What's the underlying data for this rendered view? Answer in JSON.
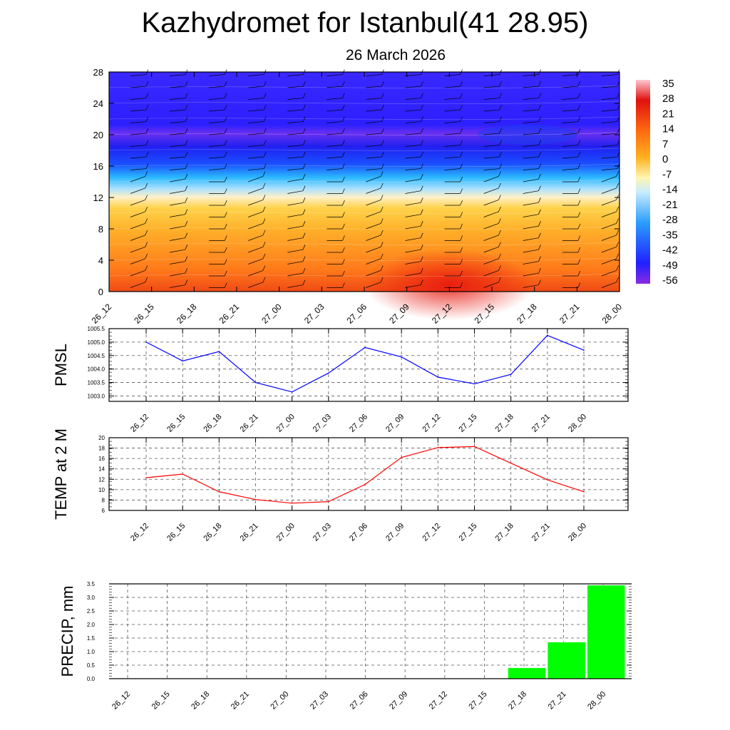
{
  "title": "Kazhydromet for Istanbul(41 28.95)",
  "subtitle": "26 March 2026",
  "time_labels": [
    "26_12",
    "26_15",
    "26_18",
    "26_21",
    "27_00",
    "27_03",
    "27_06",
    "27_09",
    "27_12",
    "27_15",
    "27_18",
    "27_21",
    "28_00"
  ],
  "chart_data": [
    {
      "type": "heatmap",
      "title": "",
      "xlabel": "",
      "ylabel": "",
      "x": [
        "26_12",
        "26_15",
        "26_18",
        "26_21",
        "27_00",
        "27_03",
        "27_06",
        "27_09",
        "27_12",
        "27_15",
        "27_18",
        "27_21",
        "28_00"
      ],
      "y_ticks": [
        0,
        4,
        8,
        12,
        16,
        20,
        24,
        28
      ],
      "ylim": [
        0,
        28
      ],
      "colorbar_labels": [
        "35",
        "28",
        "21",
        "14",
        "7",
        "0",
        "-7",
        "-14",
        "-21",
        "-28",
        "-35",
        "-42",
        "-49",
        "-56"
      ],
      "overlay": "wind barbs",
      "colors": {
        "hot": "#e8301a",
        "warm": "#ff9a1e",
        "cold": "#1e28ff",
        "deep_cold": "#7a2ef0"
      }
    },
    {
      "type": "line",
      "ylabel": "PMSL",
      "x": [
        "26_12",
        "26_15",
        "26_18",
        "26_21",
        "27_00",
        "27_03",
        "27_06",
        "27_09",
        "27_12",
        "27_15",
        "27_18",
        "27_21",
        "28_00"
      ],
      "values": [
        1005.0,
        1004.3,
        1004.65,
        1003.5,
        1003.15,
        1003.85,
        1004.8,
        1004.45,
        1003.7,
        1003.45,
        1003.8,
        1005.25,
        1004.7
      ],
      "ylim": [
        1002.8,
        1005.5
      ],
      "y_ticks": [
        "1003.0",
        "1003.5",
        "1004.0",
        "1004.5",
        "1005.0",
        "1005.5"
      ],
      "color": "#0000ff",
      "grid": true
    },
    {
      "type": "line",
      "ylabel": "TEMP at 2 M",
      "x": [
        "26_12",
        "26_15",
        "26_18",
        "26_21",
        "27_00",
        "27_03",
        "27_06",
        "27_09",
        "27_12",
        "27_15",
        "27_18",
        "27_21",
        "28_00"
      ],
      "values": [
        12.3,
        13.0,
        9.6,
        8.1,
        7.4,
        7.7,
        11.0,
        16.2,
        18.1,
        18.3,
        15.1,
        11.9,
        9.6
      ],
      "ylim": [
        6,
        20
      ],
      "y_ticks": [
        "6",
        "8",
        "10",
        "12",
        "14",
        "16",
        "18",
        "20"
      ],
      "color": "#ff0000",
      "grid": true
    },
    {
      "type": "bar",
      "ylabel": "PRECIP, mm",
      "categories": [
        "26_12",
        "26_15",
        "26_18",
        "26_21",
        "27_00",
        "27_03",
        "27_06",
        "27_09",
        "27_12",
        "27_15",
        "27_18",
        "27_21",
        "28_00"
      ],
      "values": [
        0,
        0,
        0,
        0,
        0,
        0,
        0,
        0,
        0,
        0,
        0.4,
        1.35,
        3.45
      ],
      "ylim": [
        0,
        3.5
      ],
      "y_ticks": [
        "0.0",
        "0.5",
        "1.0",
        "1.5",
        "2.0",
        "2.5",
        "3.0",
        "3.5"
      ],
      "color": "#00ff00",
      "grid": true
    }
  ]
}
